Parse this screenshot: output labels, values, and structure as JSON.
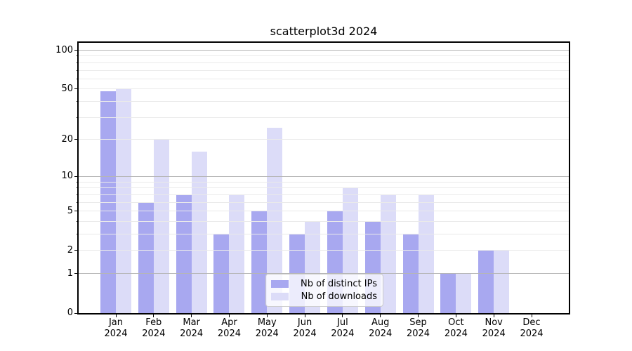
{
  "title": "scatterplot3d 2024",
  "chart_data": {
    "type": "bar",
    "title": "scatterplot3d 2024",
    "categories": [
      {
        "month": "Jan",
        "year": "2024"
      },
      {
        "month": "Feb",
        "year": "2024"
      },
      {
        "month": "Mar",
        "year": "2024"
      },
      {
        "month": "Apr",
        "year": "2024"
      },
      {
        "month": "May",
        "year": "2024"
      },
      {
        "month": "Jun",
        "year": "2024"
      },
      {
        "month": "Jul",
        "year": "2024"
      },
      {
        "month": "Aug",
        "year": "2024"
      },
      {
        "month": "Sep",
        "year": "2024"
      },
      {
        "month": "Oct",
        "year": "2024"
      },
      {
        "month": "Nov",
        "year": "2024"
      },
      {
        "month": "Dec",
        "year": "2024"
      }
    ],
    "series": [
      {
        "name": "Nb of distinct IPs",
        "color": "#a8a8f0",
        "values": [
          48,
          6,
          7,
          3,
          5,
          3,
          5,
          4,
          3,
          1,
          2,
          0
        ]
      },
      {
        "name": "Nb of downloads",
        "color": "#dcdcf8",
        "values": [
          50,
          20,
          16,
          7,
          25,
          4,
          8,
          7,
          7,
          1,
          2,
          0
        ]
      }
    ],
    "xlabel": "",
    "ylabel": "",
    "y_axis": {
      "scale": "log10(1+y)",
      "ylim": [
        0,
        114
      ],
      "labeled_ticks": [
        0,
        1,
        2,
        5,
        10,
        20,
        50,
        100
      ],
      "major_gridlines": [
        1,
        10,
        100
      ],
      "minor_gridlines": [
        2,
        3,
        4,
        5,
        6,
        7,
        8,
        9,
        20,
        30,
        40,
        50,
        60,
        70,
        80,
        90
      ]
    },
    "grid": true,
    "legend_position": "lower center"
  },
  "colors": {
    "grid_major": "#b5b5b5",
    "grid_minor": "#eaeaea",
    "axis": "#000000",
    "legend_border": "#cccccc"
  }
}
